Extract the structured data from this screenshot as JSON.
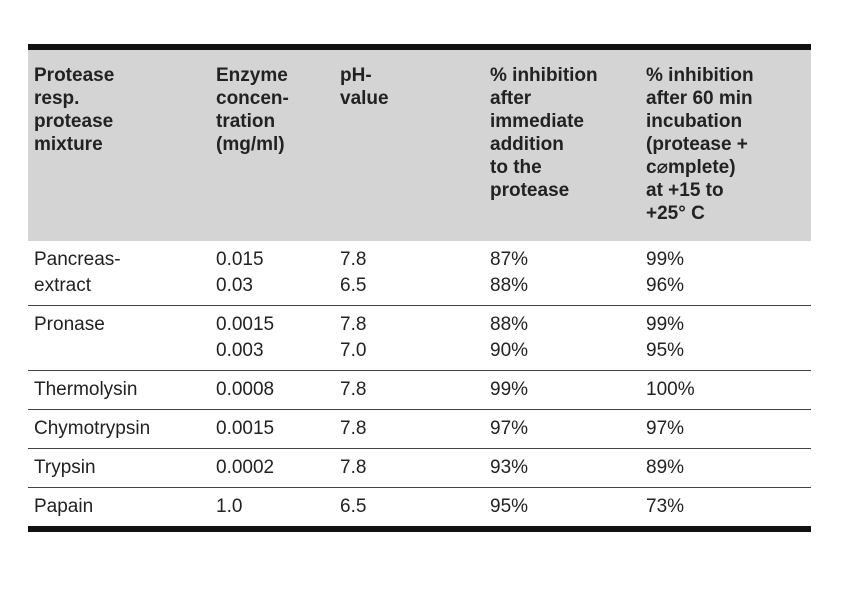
{
  "table": {
    "headers": [
      {
        "lines": [
          "Protease",
          "resp.",
          "protease",
          "mixture"
        ]
      },
      {
        "lines": [
          "Enzyme",
          "concen-",
          "tration",
          "(mg/ml)"
        ]
      },
      {
        "lines": [
          "pH-",
          "value"
        ]
      },
      {
        "lines": [
          "% inhibition",
          "after",
          "immediate",
          "addition",
          "to the",
          "protease"
        ]
      },
      {
        "lines": [
          "% inhibition",
          "after 60 min",
          "incubation",
          "(protease +",
          "c⌀mplete)",
          "at +15 to",
          "+25° C"
        ]
      }
    ],
    "rows": [
      {
        "protease": [
          "Pancreas-",
          "extract"
        ],
        "concentration": [
          "0.015",
          "0.03"
        ],
        "ph": [
          "7.8",
          "6.5"
        ],
        "immediate": [
          "87%",
          "88%"
        ],
        "incubation": [
          "99%",
          "96%"
        ]
      },
      {
        "protease": [
          "Pronase"
        ],
        "concentration": [
          "0.0015",
          "0.003"
        ],
        "ph": [
          "7.8",
          "7.0"
        ],
        "immediate": [
          "88%",
          "90%"
        ],
        "incubation": [
          "99%",
          "95%"
        ]
      },
      {
        "protease": [
          "Thermolysin"
        ],
        "concentration": [
          "0.0008"
        ],
        "ph": [
          "7.8"
        ],
        "immediate": [
          "99%"
        ],
        "incubation": [
          "100%"
        ]
      },
      {
        "protease": [
          "Chymotrypsin"
        ],
        "concentration": [
          "0.0015"
        ],
        "ph": [
          "7.8"
        ],
        "immediate": [
          "97%"
        ],
        "incubation": [
          "97%"
        ]
      },
      {
        "protease": [
          "Trypsin"
        ],
        "concentration": [
          "0.0002"
        ],
        "ph": [
          "7.8"
        ],
        "immediate": [
          "93%"
        ],
        "incubation": [
          "89%"
        ]
      },
      {
        "protease": [
          "Papain"
        ],
        "concentration": [
          "1.0"
        ],
        "ph": [
          "6.5"
        ],
        "immediate": [
          "95%"
        ],
        "incubation": [
          "73%"
        ]
      }
    ]
  }
}
